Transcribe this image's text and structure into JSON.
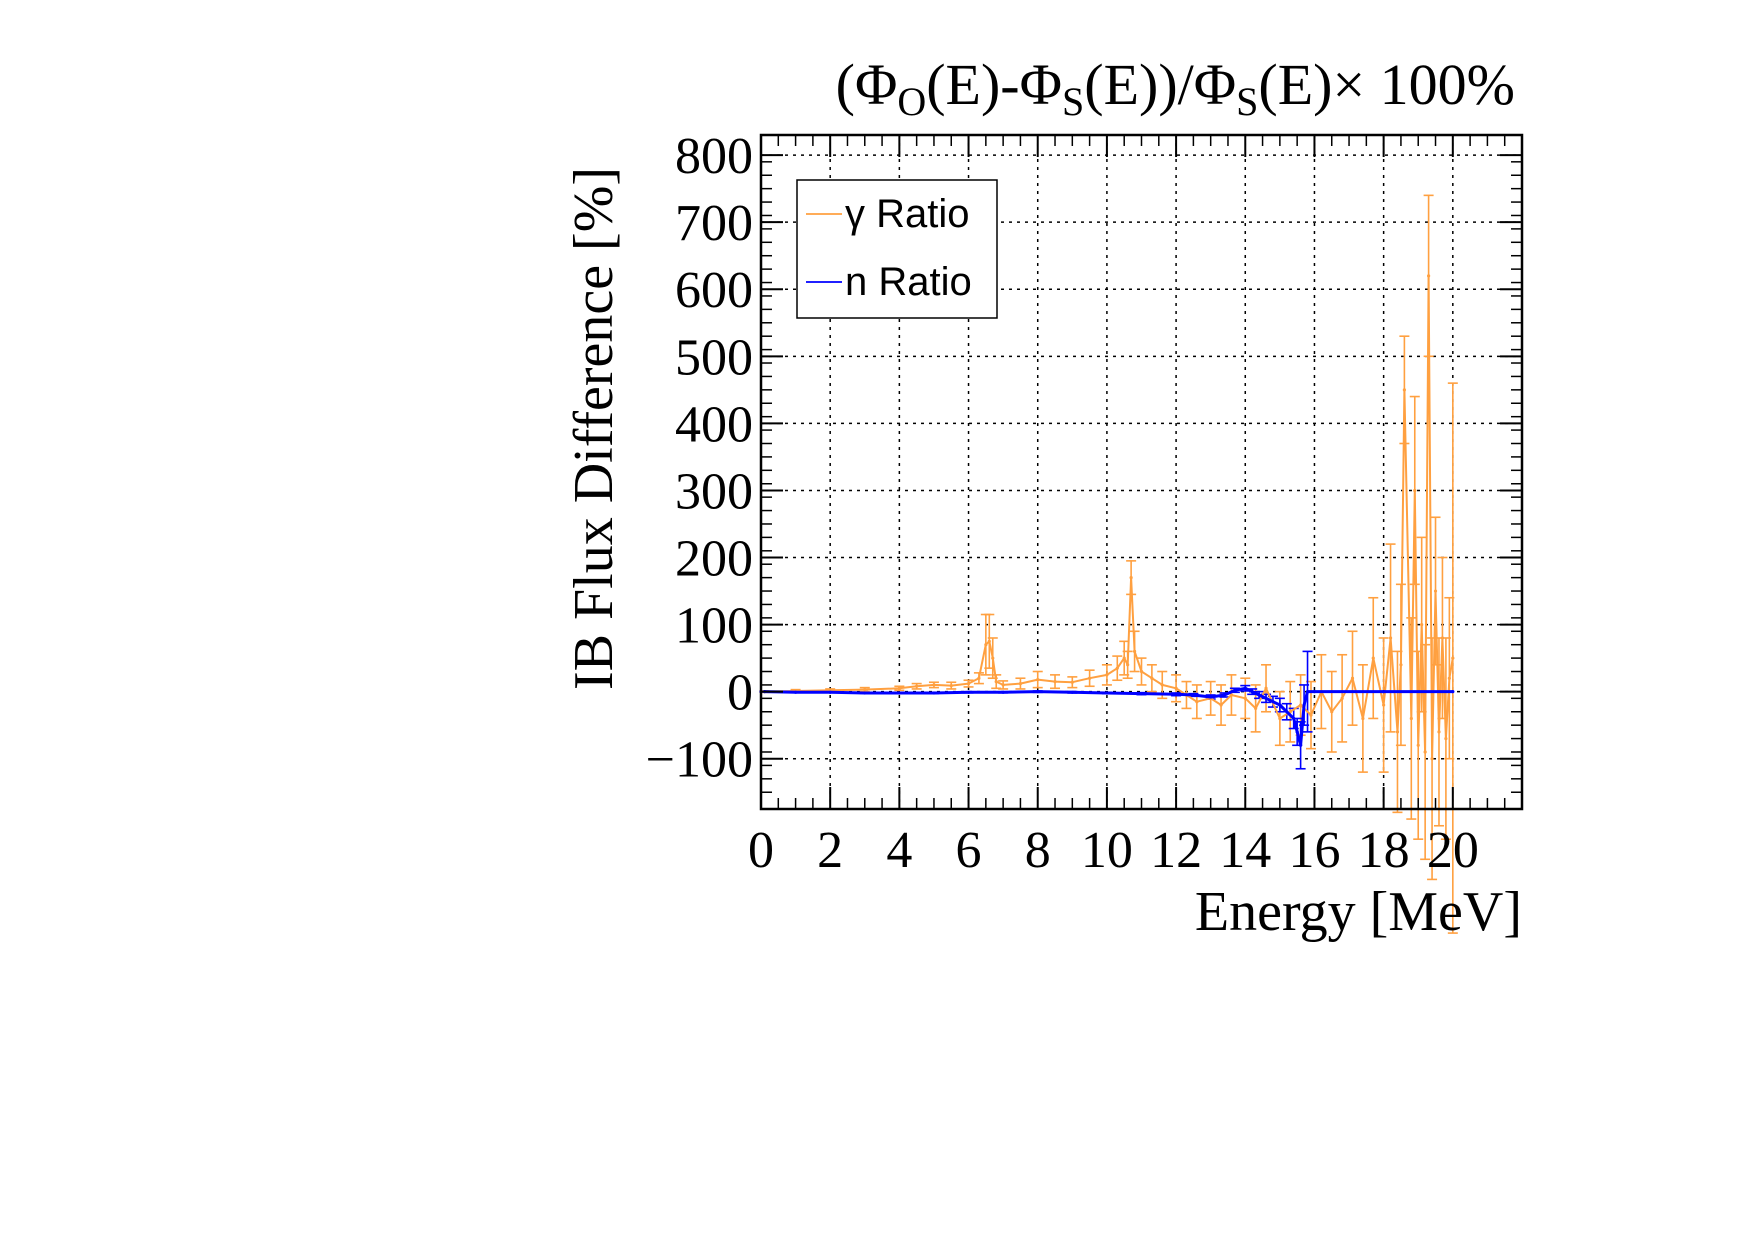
{
  "chart_data": {
    "type": "line",
    "title": {
      "parts": [
        {
          "t": "(Φ"
        },
        {
          "t": "O",
          "sub": true
        },
        {
          "t": "(E)-Φ"
        },
        {
          "t": "S",
          "sub": true
        },
        {
          "t": "(E))/Φ"
        },
        {
          "t": "S",
          "sub": true
        },
        {
          "t": "(E)× 100%"
        }
      ]
    },
    "xlabel": "Energy [MeV]",
    "ylabel": "IB Flux Difference [%]",
    "xlim": [
      0,
      22
    ],
    "ylim": [
      -175,
      830
    ],
    "x_ticks": [
      0,
      2,
      4,
      6,
      8,
      10,
      12,
      14,
      16,
      18,
      20
    ],
    "x_tick_labels": [
      "0",
      "2",
      "4",
      "6",
      "8",
      "10",
      "12",
      "14",
      "16",
      "18",
      "20"
    ],
    "y_ticks": [
      -100,
      0,
      100,
      200,
      300,
      400,
      500,
      600,
      700,
      800
    ],
    "y_tick_labels": [
      "−100",
      "0",
      "100",
      "200",
      "300",
      "400",
      "500",
      "600",
      "700",
      "800"
    ],
    "grid": true,
    "legend": {
      "placement": "top-left",
      "entries": [
        {
          "label": "γ Ratio",
          "series": "gamma"
        },
        {
          "label": "n Ratio",
          "series": "neutron"
        }
      ]
    },
    "series": [
      {
        "name": "γ Ratio",
        "key": "gamma",
        "color": "#ffa040",
        "x": [
          0.1,
          1.0,
          2.0,
          3.0,
          4.0,
          4.5,
          5.0,
          5.5,
          6.0,
          6.3,
          6.5,
          6.6,
          6.7,
          6.8,
          7.0,
          7.5,
          8.0,
          8.5,
          9.0,
          9.5,
          10.0,
          10.3,
          10.5,
          10.6,
          10.7,
          10.8,
          11.0,
          11.3,
          11.6,
          12.0,
          12.3,
          12.6,
          13.0,
          13.3,
          13.6,
          14.0,
          14.3,
          14.6,
          15.0,
          15.3,
          15.6,
          15.9,
          16.2,
          16.5,
          16.8,
          17.1,
          17.4,
          17.7,
          18.0,
          18.2,
          18.4,
          18.5,
          18.6,
          18.8,
          18.9,
          19.0,
          19.1,
          19.2,
          19.3,
          19.4,
          19.5,
          19.6,
          19.7,
          19.8,
          19.9,
          20.0
        ],
        "y": [
          0,
          1,
          2,
          3,
          5,
          8,
          10,
          9,
          12,
          20,
          70,
          75,
          50,
          15,
          10,
          12,
          18,
          15,
          14,
          20,
          25,
          35,
          50,
          40,
          170,
          60,
          30,
          20,
          10,
          5,
          -5,
          -15,
          -10,
          -20,
          -5,
          -10,
          -25,
          5,
          -40,
          -30,
          -20,
          -35,
          0,
          -30,
          -10,
          20,
          -40,
          50,
          -20,
          80,
          -60,
          40,
          450,
          -40,
          300,
          -80,
          100,
          -90,
          620,
          -100,
          150,
          -60,
          80,
          -70,
          20,
          50
        ],
        "err": [
          1,
          2,
          2,
          3,
          3,
          4,
          4,
          5,
          5,
          8,
          45,
          40,
          30,
          10,
          6,
          8,
          12,
          10,
          8,
          12,
          15,
          18,
          25,
          20,
          25,
          30,
          20,
          20,
          20,
          20,
          20,
          25,
          25,
          30,
          30,
          30,
          35,
          35,
          40,
          45,
          45,
          50,
          55,
          60,
          65,
          70,
          80,
          90,
          100,
          140,
          120,
          120,
          80,
          150,
          140,
          140,
          130,
          160,
          120,
          180,
          110,
          140,
          120,
          150,
          120,
          410
        ]
      },
      {
        "name": "n Ratio",
        "key": "neutron",
        "color": "#0000ff",
        "x": [
          0.1,
          1.0,
          2.0,
          3.0,
          4.0,
          5.0,
          6.0,
          7.0,
          8.0,
          9.0,
          10.0,
          11.0,
          12.0,
          12.5,
          13.0,
          13.4,
          13.7,
          14.0,
          14.2,
          14.4,
          14.6,
          14.8,
          15.0,
          15.2,
          15.4,
          15.5,
          15.6,
          15.7,
          15.8,
          16.0,
          18.0,
          20.0
        ],
        "y": [
          0,
          -1,
          -1,
          -2,
          -2,
          -2,
          -1,
          -1,
          0,
          -1,
          -2,
          -3,
          -4,
          -5,
          -8,
          -5,
          2,
          5,
          0,
          -5,
          -10,
          -15,
          -20,
          -30,
          -40,
          -60,
          -80,
          -20,
          0,
          0,
          0,
          0
        ],
        "err": [
          0.5,
          0.5,
          0.5,
          0.5,
          0.5,
          0.8,
          0.8,
          0.8,
          1,
          1,
          1,
          1.5,
          2,
          2,
          3,
          3,
          3,
          4,
          4,
          5,
          6,
          8,
          10,
          12,
          15,
          20,
          35,
          30,
          60,
          0,
          0,
          0
        ]
      }
    ]
  }
}
